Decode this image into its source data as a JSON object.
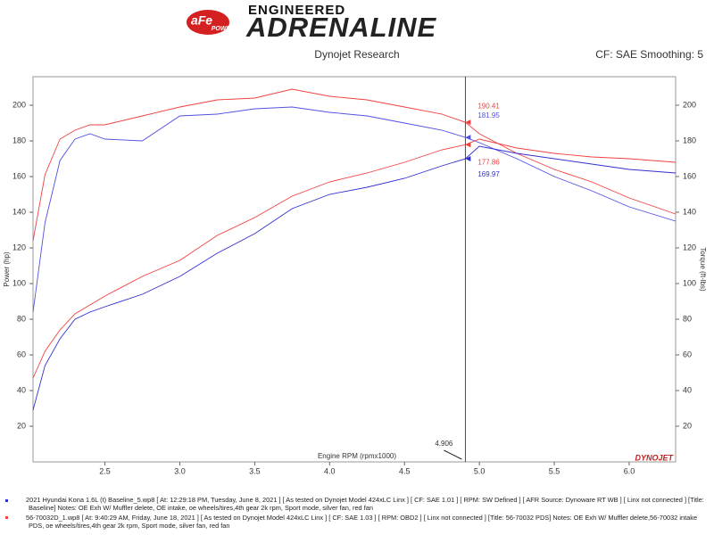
{
  "header": {
    "brand": "aFe",
    "brand_sub": "POWER",
    "line1": "ENGINEERED",
    "line2": "ADRENALINE"
  },
  "chart_data": {
    "type": "line",
    "title": "Dynojet Research",
    "subtitle": "CF: SAE Smoothing: 5",
    "xlabel": "Engine RPM (rpmx1000)",
    "ylabel": "Power (hp)",
    "y2label": "Torque (ft-lbs)",
    "x": [
      2.02,
      2.1,
      2.2,
      2.3,
      2.4,
      2.5,
      2.75,
      3.0,
      3.25,
      3.5,
      3.75,
      4.0,
      4.25,
      4.5,
      4.75,
      4.906,
      5.0,
      5.25,
      5.5,
      5.75,
      6.0,
      6.31
    ],
    "xlim": [
      2.02,
      6.31
    ],
    "xticks": [
      2.5,
      {
        "value": 3,
        "label": "3.0"
      },
      3.5,
      {
        "value": 4,
        "label": "4.0"
      },
      4.5,
      {
        "value": 5,
        "label": "5.0"
      },
      5.5,
      {
        "value": 6,
        "label": "6.0"
      }
    ],
    "ylim": [
      0,
      216
    ],
    "yticks": [
      20,
      40,
      60,
      80,
      100,
      120,
      140,
      160,
      180,
      200
    ],
    "y2lim": [
      0,
      216
    ],
    "y2ticks": [
      20,
      40,
      60,
      80,
      100,
      120,
      140,
      160,
      180,
      200
    ],
    "cursor_index": 15,
    "grid": false,
    "series": [
      {
        "color": "#f04040",
        "axis": "y2",
        "values": [
          124,
          161,
          181,
          186,
          189,
          189,
          194,
          199,
          203,
          204,
          209,
          205,
          203,
          199,
          195,
          190.41,
          184,
          173,
          164,
          157,
          148,
          139
        ]
      },
      {
        "color": "#5050e0",
        "axis": "y2",
        "values": [
          84,
          134,
          169,
          181,
          184,
          181,
          180,
          194,
          195,
          198,
          199,
          196,
          194,
          190,
          186,
          181.95,
          179,
          170,
          160,
          152,
          143,
          135
        ]
      },
      {
        "color": "#f04040",
        "values": [
          47,
          62,
          74,
          83,
          88,
          93,
          104,
          113,
          127,
          137,
          149,
          157,
          162,
          168,
          175,
          177.86,
          181,
          176,
          173,
          171,
          170,
          168
        ]
      },
      {
        "color": "#3030d0",
        "values": [
          29,
          54,
          69,
          80,
          84,
          87,
          94,
          104,
          117,
          128,
          142,
          150,
          154,
          159,
          166,
          169.97,
          177,
          173,
          170,
          167,
          164,
          162
        ]
      }
    ],
    "watermark": "DYNOJET"
  },
  "footer": {
    "notes": [
      "2021 Hyundai Kona 1.6L (t) Baseline_5.wp8 [ At: 12:29:18 PM, Tuesday, June 8, 2021 ] [ As tested on Dynojet Model 424xLC Linx ] [ CF: SAE 1.01 ] [ RPM: SW Defined ] [ AFR Source: Dynoware RT WB ] [ Linx not connected ] [Title: Baseline]  Notes: OE Exh W/ Muffler delete, OE intake, oe wheels/tires,4th gear 2k rpm, Sport mode, silver fan, red fan",
      "56-70032D_1.wp8 [ At: 9:40:29 AM, Friday, June 18, 2021 ] [ As tested on Dynojet Model 424xLC Linx ] [ CF: SAE 1.03 ] [ RPM: OBD2 ] [ Linx not connected ] [Title: 56-70032 PDS]  Notes: OE Exh W/ Muffler delete,56-70032 intake PDS, oe wheels/tires,4th gear 2k rpm, Sport mode, silver fan, red fan"
    ]
  }
}
